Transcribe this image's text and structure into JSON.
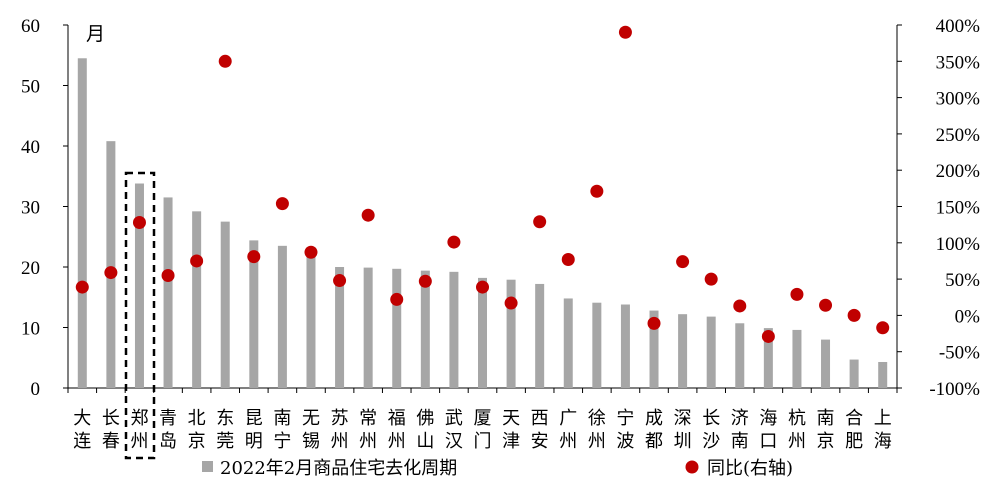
{
  "chart_data": {
    "type": "bar",
    "unit_label": "月",
    "categories": [
      "大连",
      "长春",
      "郑州",
      "青岛",
      "北京",
      "东莞",
      "昆明",
      "南宁",
      "无锡",
      "苏州",
      "常州",
      "福州",
      "佛山",
      "武汉",
      "厦门",
      "天津",
      "西安",
      "广州",
      "徐州",
      "宁波",
      "成都",
      "深圳",
      "长沙",
      "济南",
      "海口",
      "杭州",
      "南京",
      "合肥",
      "上海"
    ],
    "highlighted_category": "郑州",
    "series": [
      {
        "name": "2022年2月商品住宅去化周期",
        "kind": "bar",
        "axis": "left",
        "color": "#a6a6a6",
        "values": [
          54.5,
          40.8,
          33.8,
          31.5,
          29.2,
          27.5,
          24.4,
          23.5,
          23.2,
          20.0,
          19.9,
          19.7,
          19.4,
          19.2,
          18.2,
          17.9,
          17.2,
          14.8,
          14.1,
          13.8,
          12.8,
          12.2,
          11.8,
          10.7,
          9.9,
          9.6,
          8.0,
          4.7,
          4.3
        ]
      },
      {
        "name": "同比(右轴)",
        "kind": "scatter",
        "axis": "right",
        "color": "#c00000",
        "values": [
          39,
          59,
          128,
          55,
          75,
          350,
          81,
          154,
          87,
          48,
          138,
          22,
          47,
          101,
          39,
          17,
          129,
          77,
          171,
          390,
          -11,
          74,
          50,
          13,
          -29,
          29,
          14,
          0,
          -17
        ]
      }
    ],
    "left_axis": {
      "min": 0,
      "max": 60,
      "step": 10,
      "ticks": [
        "0",
        "10",
        "20",
        "30",
        "40",
        "50",
        "60"
      ]
    },
    "right_axis": {
      "min": -100,
      "max": 400,
      "step": 50,
      "ticks": [
        "-100%",
        "-50%",
        "0%",
        "50%",
        "100%",
        "150%",
        "200%",
        "250%",
        "300%",
        "350%",
        "400%"
      ]
    },
    "legend_position": "bottom"
  }
}
